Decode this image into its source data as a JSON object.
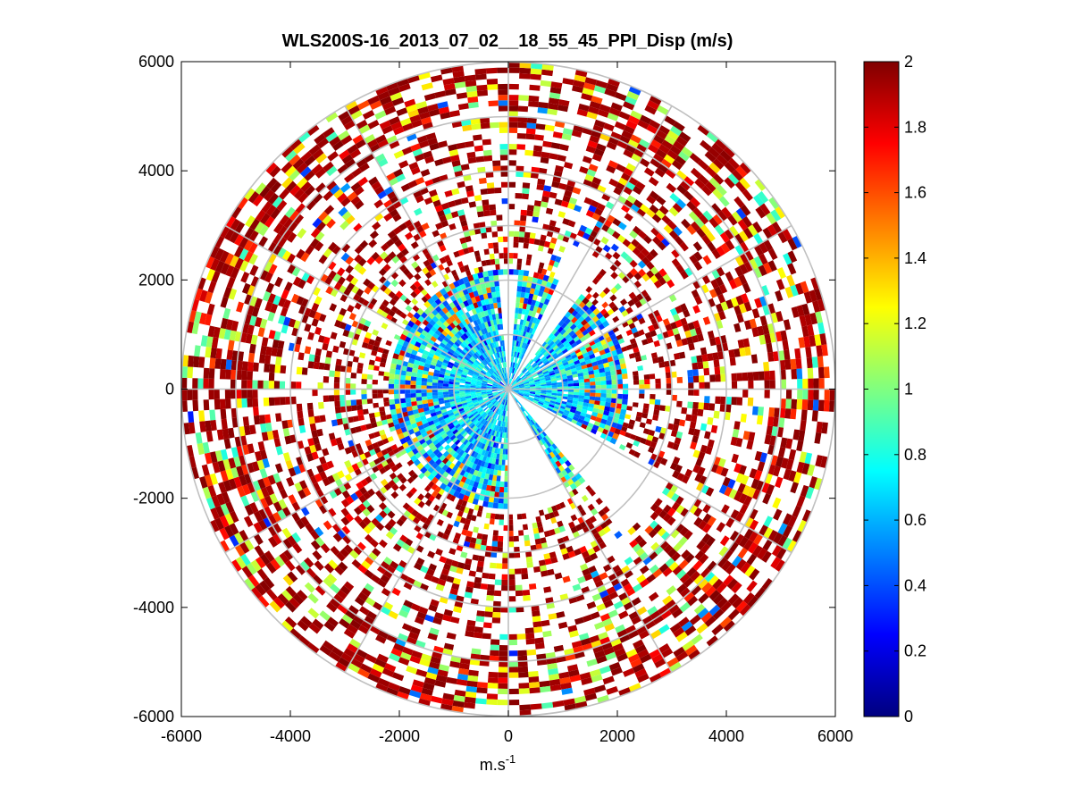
{
  "chart_data": {
    "type": "heatmap",
    "subtype": "polar-ppi",
    "title": "WLS200S-16_2013_07_02__18_55_45_PPI_Disp (m/s)",
    "xlabel": "m.s",
    "xlabel_superscript": "-1",
    "ylabel": "",
    "xlim": [
      -6000,
      6000
    ],
    "ylim": [
      -6000,
      6000
    ],
    "x_ticks": [
      -6000,
      -4000,
      -2000,
      0,
      2000,
      4000,
      6000
    ],
    "y_ticks": [
      -6000,
      -4000,
      -2000,
      0,
      2000,
      4000,
      6000
    ],
    "x_tick_labels": [
      "-6000",
      "-4000",
      "-2000",
      "0",
      "2000",
      "4000",
      "6000"
    ],
    "y_tick_labels": [
      "-6000",
      "-4000",
      "-2000",
      "0",
      "2000",
      "4000",
      "6000"
    ],
    "range_rings": [
      1000,
      2000,
      3000,
      4000,
      5000,
      6000
    ],
    "spoke_angles_deg": [
      0,
      30,
      60,
      90,
      120,
      150,
      180,
      210,
      240,
      270,
      300,
      330
    ],
    "grid_color": "#c0c0c0",
    "colorbar": {
      "colormap": "jet",
      "range": [
        0,
        2
      ],
      "ticks": [
        0,
        0.2,
        0.4,
        0.6,
        0.8,
        1,
        1.2,
        1.4,
        1.6,
        1.8,
        2
      ],
      "tick_labels": [
        "0",
        "0.2",
        "0.4",
        "0.6",
        "0.8",
        "1",
        "1.2",
        "1.4",
        "1.6",
        "1.8",
        "2"
      ]
    },
    "data_summary": {
      "gate_spacing_m": 100,
      "max_range_m": 6000,
      "azimuth_gaps": [
        {
          "from_deg": -5,
          "to_deg": 5,
          "min_range_m": 2200
        },
        {
          "from_deg": 25,
          "to_deg": 37,
          "min_range_m": 3000
        },
        {
          "from_deg": 58,
          "to_deg": 60,
          "min_range_m": 5000
        },
        {
          "from_deg": 118,
          "to_deg": 140,
          "min_range_m": 3500
        },
        {
          "from_deg": 150,
          "to_deg": 210,
          "min_range_m": 2400
        },
        {
          "from_deg": 215,
          "to_deg": 225,
          "min_range_m": 2900
        },
        {
          "from_deg": 235,
          "to_deg": 245,
          "min_range_m": 2500
        },
        {
          "from_deg": 290,
          "to_deg": 300,
          "min_range_m": 3500
        },
        {
          "from_deg": 320,
          "to_deg": 330,
          "min_range_m": 3000
        }
      ],
      "inner_zone": {
        "max_range_m": 2200,
        "typical_value": 0.7,
        "spread": 0.25
      },
      "outer_zone": {
        "from_range_m": 2200,
        "typical_value": 1.85,
        "fill_fraction": 0.45
      }
    }
  }
}
